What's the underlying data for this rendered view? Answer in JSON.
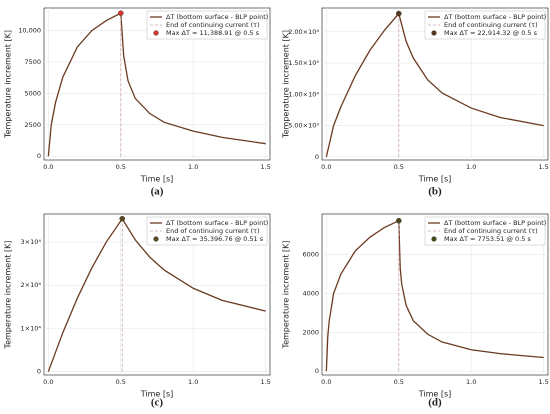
{
  "chart_data": [
    {
      "type": "line",
      "caption": "(a)",
      "xlabel": "Time [s]",
      "ylabel": "Temperature increment [K]",
      "grid": true,
      "legend": "upper right",
      "xlim": [
        -0.03,
        1.53
      ],
      "xticks": [
        {
          "value": 0,
          "label": "0.0"
        },
        0.5,
        {
          "value": 1,
          "label": "1.0"
        },
        1.5
      ],
      "ylim": [
        -300,
        11800
      ],
      "yticks": [
        0,
        2500,
        5000,
        7500,
        {
          "value": 10000,
          "label": "10,000"
        }
      ],
      "series": [
        {
          "name": "ΔT (bottom surface - BLP point)",
          "color": "#6b3a22",
          "style": "solid",
          "x": [
            0,
            0.02,
            0.05,
            0.1,
            0.2,
            0.3,
            0.4,
            0.5,
            0.52,
            0.55,
            0.6,
            0.7,
            0.8,
            1.0,
            1.2,
            1.5
          ],
          "values": [
            0,
            2500,
            4300,
            6300,
            8700,
            10000,
            10800,
            11388.91,
            8000,
            6000,
            4600,
            3400,
            2700,
            2000,
            1500,
            1000
          ]
        },
        {
          "name": "End of continuing current (τ)",
          "color": "#c9a3ad",
          "style": "dashed",
          "x": [
            0.5,
            0.5
          ],
          "values": [
            0,
            11388.91
          ]
        },
        {
          "name": "Max ΔT = 11,388.91 @ 0.5 s",
          "color": "#d9352b",
          "style": "marker",
          "x": [
            0.5
          ],
          "values": [
            11388.91
          ]
        }
      ]
    },
    {
      "type": "line",
      "caption": "(b)",
      "xlabel": "Time [s]",
      "ylabel": "Temperature increment [K]",
      "grid": true,
      "legend": "upper right",
      "xlim": [
        -0.03,
        1.53
      ],
      "xticks": [
        {
          "value": 0,
          "label": "0.0"
        },
        0.5,
        {
          "value": 1,
          "label": "1.0"
        },
        1.5
      ],
      "ylim": [
        -500,
        23800
      ],
      "yticks": [
        0,
        {
          "value": 5000,
          "label": "5.00×10³"
        },
        {
          "value": 10000,
          "label": "1.00×10⁴"
        },
        {
          "value": 15000,
          "label": "1.50×10⁴"
        },
        {
          "value": 20000,
          "label": "2.00×10⁴"
        }
      ],
      "series": [
        {
          "name": "ΔT (bottom surface - BLP point)",
          "color": "#6b3a22",
          "style": "solid",
          "x": [
            0,
            0.05,
            0.1,
            0.2,
            0.3,
            0.4,
            0.5,
            0.55,
            0.6,
            0.7,
            0.8,
            1.0,
            1.2,
            1.5
          ],
          "values": [
            0,
            5000,
            8000,
            13000,
            17000,
            20200,
            22914.32,
            18500,
            15800,
            12300,
            10200,
            7800,
            6300,
            5000
          ]
        },
        {
          "name": "End of continuing current (τ)",
          "color": "#c9a3ad",
          "style": "dashed",
          "x": [
            0.5,
            0.5
          ],
          "values": [
            0,
            22914.32
          ]
        },
        {
          "name": "Max ΔT = 22,914.32 @ 0.5 s",
          "color": "#5a3a1e",
          "style": "marker",
          "x": [
            0.5
          ],
          "values": [
            22914.32
          ]
        }
      ]
    },
    {
      "type": "line",
      "caption": "(c)",
      "xlabel": "Time [s]",
      "ylabel": "Temperature increment [K]",
      "grid": true,
      "legend": "upper right",
      "xlim": [
        -0.03,
        1.53
      ],
      "xticks": [
        {
          "value": 0,
          "label": "0.0"
        },
        0.5,
        {
          "value": 1,
          "label": "1.0"
        },
        1.5
      ],
      "ylim": [
        -800,
        36500
      ],
      "yticks": [
        0,
        {
          "value": 10000,
          "label": "1×10⁴"
        },
        {
          "value": 20000,
          "label": "2×10⁴"
        },
        {
          "value": 30000,
          "label": "3×10⁴"
        }
      ],
      "series": [
        {
          "name": "ΔT (bottom surface - BLP point)",
          "color": "#6b3a22",
          "style": "solid",
          "x": [
            0,
            0.1,
            0.2,
            0.3,
            0.4,
            0.51,
            0.6,
            0.7,
            0.8,
            1.0,
            1.2,
            1.5
          ],
          "values": [
            0,
            9000,
            17000,
            24000,
            30000,
            35396.76,
            30500,
            26500,
            23500,
            19300,
            16500,
            14000
          ]
        },
        {
          "name": "End of continuing current (τ)",
          "color": "#c9a3ad",
          "style": "dashed",
          "x": [
            0.51,
            0.51
          ],
          "values": [
            0,
            35396.76
          ]
        },
        {
          "name": "Max ΔT = 35,396.76 @ 0.51 s",
          "color": "#5a4a1e",
          "style": "marker",
          "x": [
            0.51
          ],
          "values": [
            35396.76
          ]
        }
      ]
    },
    {
      "type": "line",
      "caption": "(d)",
      "xlabel": "Time [s]",
      "ylabel": "Temperature increment [K]",
      "grid": true,
      "legend": "upper right",
      "xlim": [
        -0.03,
        1.53
      ],
      "xticks": [
        {
          "value": 0,
          "label": "0.0"
        },
        0.5,
        {
          "value": 1,
          "label": "1.0"
        },
        1.5
      ],
      "ylim": [
        -200,
        8100
      ],
      "yticks": [
        0,
        2000,
        4000,
        6000
      ],
      "series": [
        {
          "name": "ΔT (bottom surface - BLP point)",
          "color": "#6b3a22",
          "style": "solid",
          "x": [
            0,
            0.01,
            0.02,
            0.05,
            0.1,
            0.2,
            0.3,
            0.4,
            0.5,
            0.51,
            0.52,
            0.55,
            0.6,
            0.7,
            0.8,
            1.0,
            1.2,
            1.5
          ],
          "values": [
            0,
            1800,
            2600,
            4000,
            5000,
            6200,
            6900,
            7400,
            7753.51,
            5300,
            4500,
            3400,
            2600,
            1900,
            1500,
            1100,
            900,
            700
          ]
        },
        {
          "name": "End of continuing current (τ)",
          "color": "#c9a3ad",
          "style": "dashed",
          "x": [
            0.5,
            0.5
          ],
          "values": [
            0,
            7753.51
          ]
        },
        {
          "name": "Max ΔT = 7753.51 @ 0.5 s",
          "color": "#4a4a1e",
          "style": "marker",
          "x": [
            0.5
          ],
          "values": [
            7753.51
          ]
        }
      ]
    }
  ]
}
